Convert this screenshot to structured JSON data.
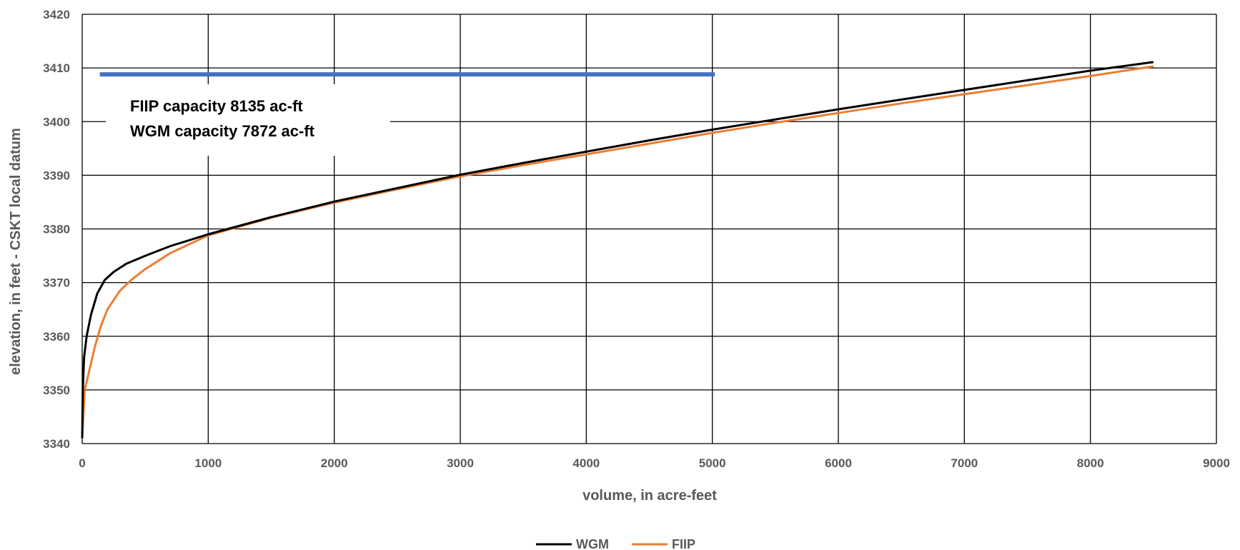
{
  "chart_data": {
    "type": "line",
    "title": "",
    "xlabel": "volume, in acre-feet",
    "ylabel": "elevation, in feet - CSKT local datum",
    "xlim": [
      0,
      9000
    ],
    "ylim": [
      3340,
      3420
    ],
    "xticks": [
      0,
      1000,
      2000,
      3000,
      4000,
      5000,
      6000,
      7000,
      8000,
      9000
    ],
    "yticks": [
      3340,
      3350,
      3360,
      3370,
      3380,
      3390,
      3400,
      3410,
      3420
    ],
    "grid": true,
    "legend_position": "bottom",
    "series": [
      {
        "name": "WGM",
        "color": "#000000",
        "x": [
          0,
          5,
          15,
          35,
          70,
          120,
          180,
          250,
          350,
          500,
          700,
          1000,
          1500,
          2000,
          2500,
          3000,
          3500,
          4000,
          4500,
          5000,
          5500,
          6000,
          6500,
          7000,
          7500,
          8000,
          8500
        ],
        "y": [
          3341,
          3350,
          3356,
          3360,
          3364,
          3368,
          3370.5,
          3372,
          3373.5,
          3375,
          3376.8,
          3379,
          3382.2,
          3385.1,
          3387.6,
          3390.1,
          3392.3,
          3394.4,
          3396.5,
          3398.5,
          3400.4,
          3402.3,
          3404.1,
          3405.9,
          3407.7,
          3409.5,
          3411.1
        ]
      },
      {
        "name": "FIIP",
        "color": "#ED7D31",
        "x": [
          0,
          20,
          40,
          60,
          80,
          100,
          150,
          200,
          300,
          400,
          500,
          700,
          1000,
          1500,
          2000,
          2500,
          3000,
          3500,
          4000,
          4500,
          5000,
          5500,
          6000,
          6500,
          7000,
          7500,
          8000,
          8500
        ],
        "y": [
          3341,
          3350,
          3352,
          3354,
          3356,
          3358,
          3362,
          3365,
          3368.5,
          3370.7,
          3372.5,
          3375.5,
          3378.8,
          3382.1,
          3384.9,
          3387.4,
          3389.8,
          3391.9,
          3393.9,
          3395.9,
          3397.9,
          3399.8,
          3401.6,
          3403.4,
          3405.1,
          3406.8,
          3408.5,
          3410.3
        ]
      },
      {
        "name": "",
        "color": "#4472C4",
        "x": [
          140,
          5020
        ],
        "y": [
          3408.8,
          3408.8
        ]
      }
    ],
    "annotations": [
      "FIIP capacity 8135 ac-ft",
      "WGM capacity 7872 ac-ft"
    ]
  }
}
